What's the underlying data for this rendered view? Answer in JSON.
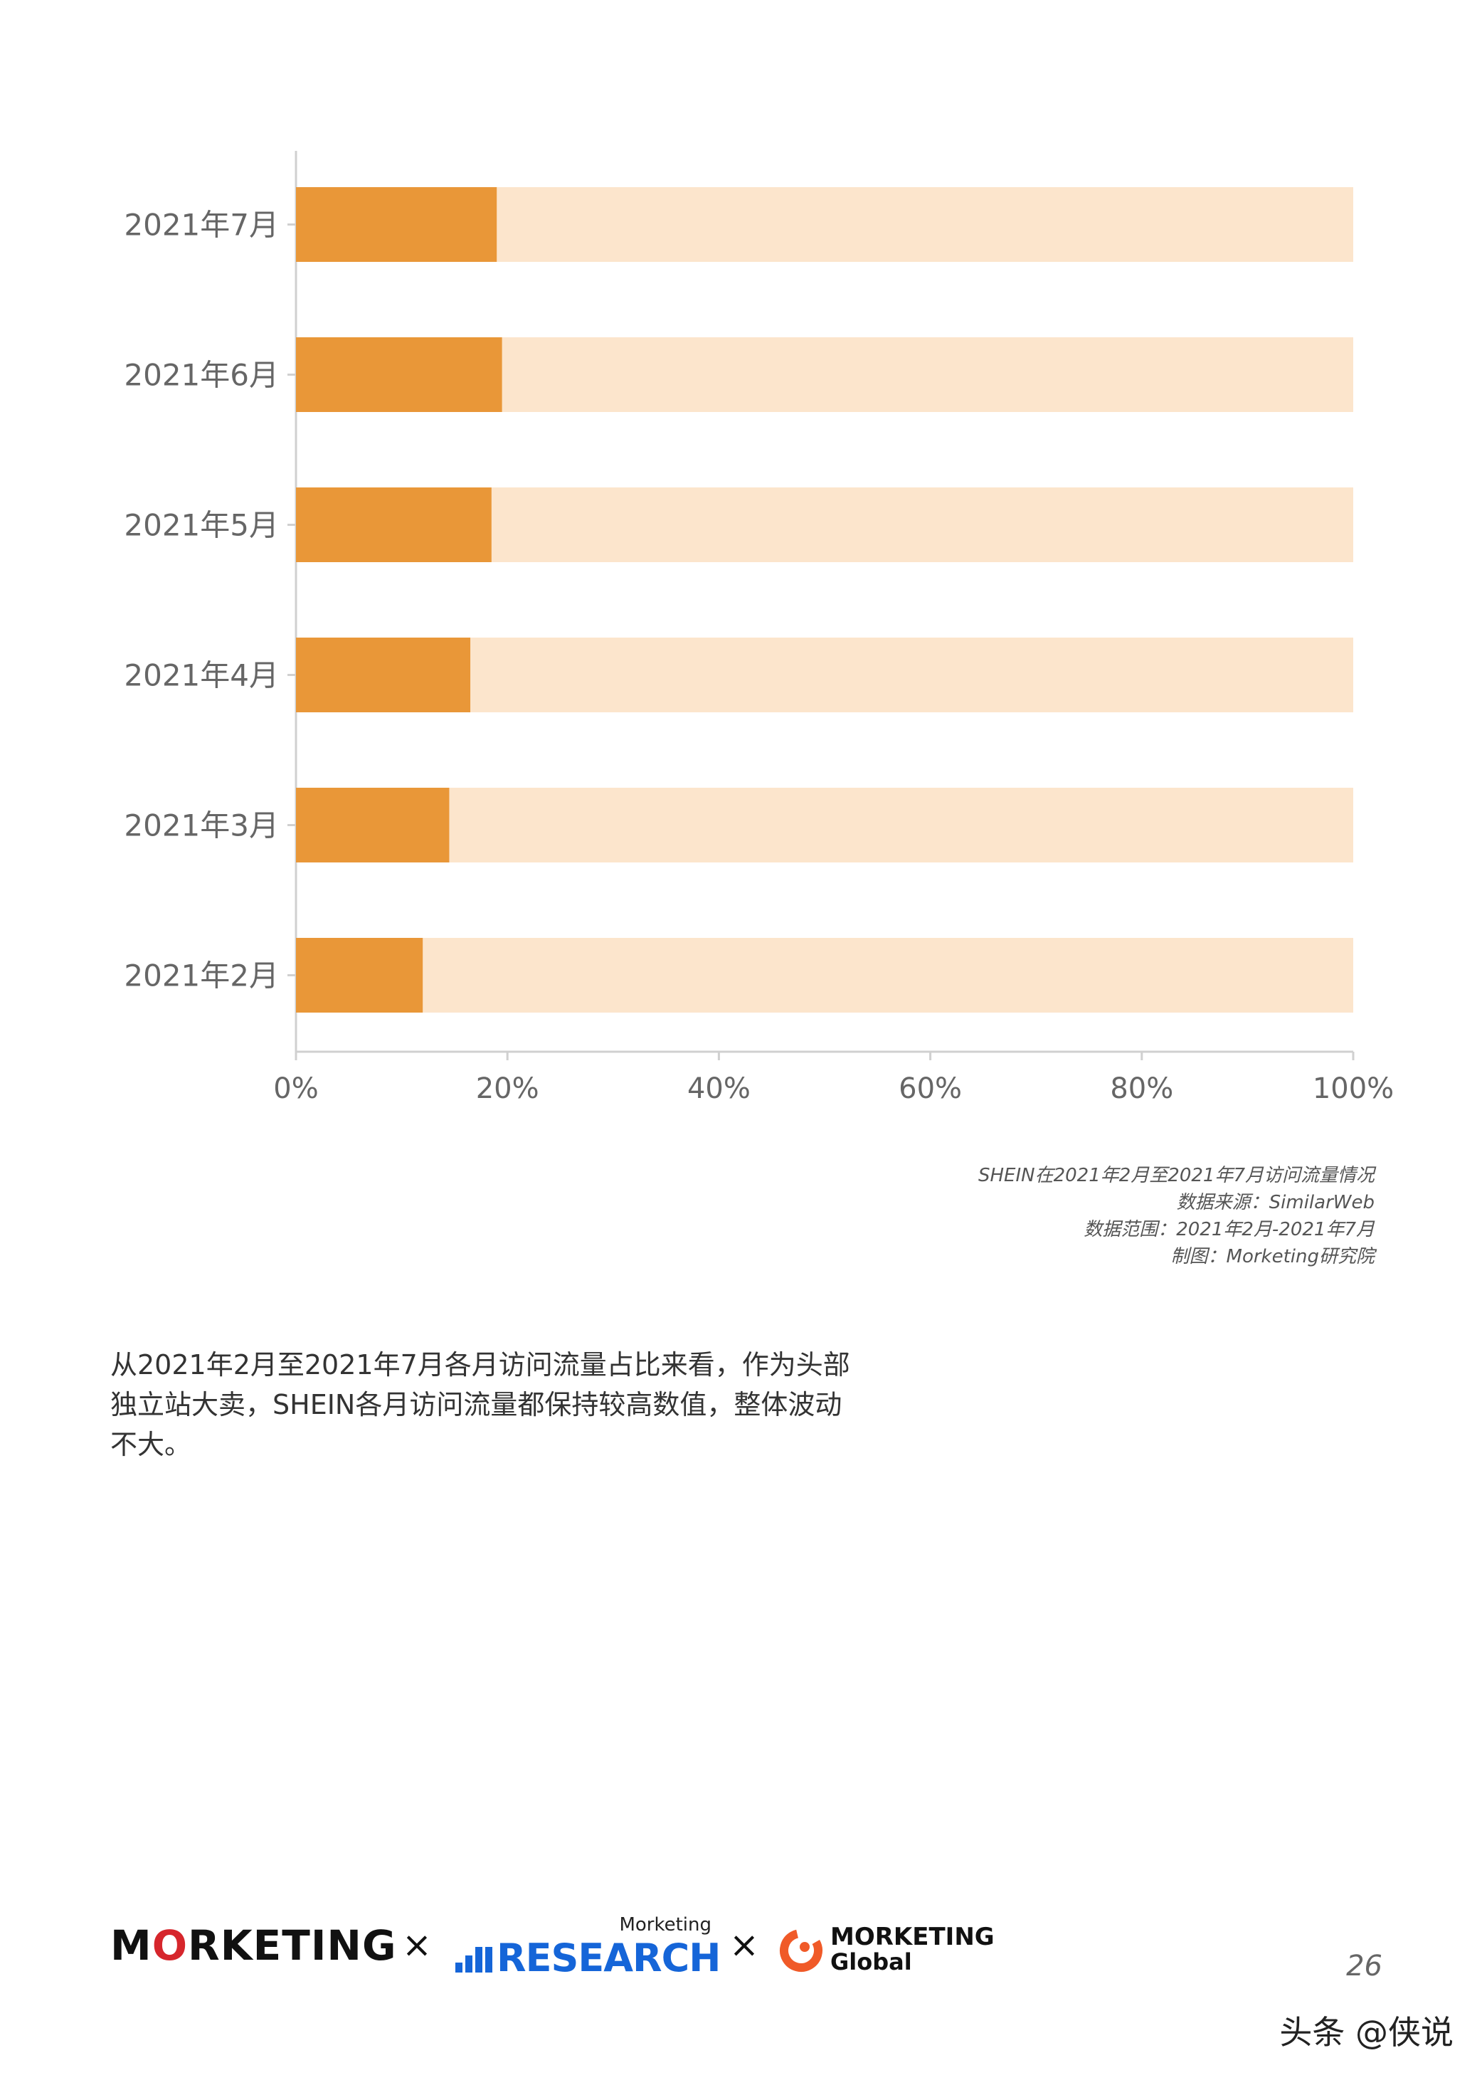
{
  "chart_data": {
    "type": "bar",
    "orientation": "horizontal",
    "stacked": true,
    "categories": [
      "2021年7月",
      "2021年6月",
      "2021年5月",
      "2021年4月",
      "2021年3月",
      "2021年2月"
    ],
    "series": [
      {
        "values": [
          19,
          19.5,
          18.5,
          16.5,
          14.5,
          12
        ]
      },
      {
        "values": [
          81,
          80.5,
          81.5,
          83.5,
          85.5,
          88
        ]
      }
    ],
    "xlim": [
      0,
      100
    ],
    "x_ticks": [
      "0%",
      "20%",
      "40%",
      "60%",
      "80%",
      "100%"
    ],
    "grid": false,
    "legend": "none",
    "colors": [
      "#e99738",
      "#fce5cc"
    ]
  },
  "caption": {
    "line1": "SHEIN在2021年2月至2021年7月访问流量情况",
    "line2": "数据来源：SimilarWeb",
    "line3": "数据范围：2021年2月-2021年7月",
    "line4": "制图：Morketing研究院"
  },
  "body_text": {
    "line1": "从2021年2月至2021年7月各月访问流量占比来看，作为头部",
    "line2": "独立站大卖，SHEIN各月访问流量都保持较高数值，整体波动",
    "line3": "不大。"
  },
  "footer": {
    "logo_marketing_pre": "M",
    "logo_marketing_o": "O",
    "logo_marketing_post": "RKETING",
    "times_symbol": "×",
    "research_small": "Morketing",
    "research_big": "RESEARCH",
    "global_line1": "MORKETING",
    "global_line2": "Global",
    "page_number": "26"
  },
  "watermark": "头条 @侠说",
  "colors": {
    "accent_orange": "#e99738",
    "light_orange": "#fce5cc",
    "research_blue": "#1565d8",
    "brand_red": "#d6262c",
    "global_orange": "#f05a28"
  }
}
